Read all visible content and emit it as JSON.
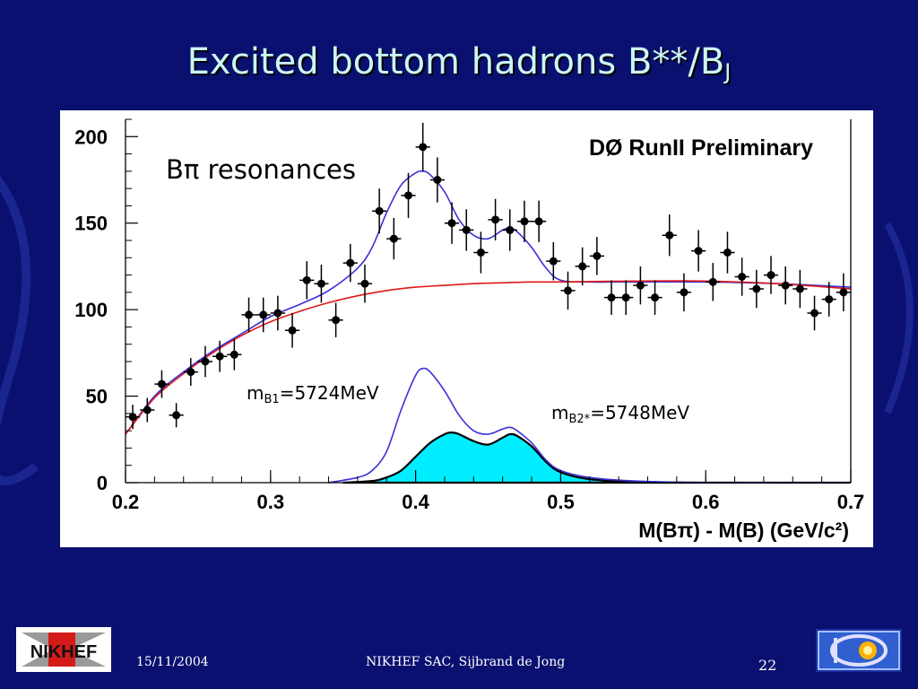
{
  "slide": {
    "title": "Excited bottom hadrons B**/B",
    "title_sub": "J",
    "footer_date": "15/11/2004",
    "footer_center": "NIKHEF SAC, Sijbrand de Jong",
    "page_number": "22",
    "logo_left_text": "NIKHEF",
    "background_color": "#0a1070",
    "title_color": "#ccf5f5"
  },
  "chart_data": {
    "type": "scatter",
    "experiment_label": "DØ RunII  Preliminary",
    "annotation_main": "Bπ resonances",
    "annotation_b1": {
      "prefix": "m",
      "sub": "B1",
      "rest": "=5724MeV"
    },
    "annotation_b2": {
      "prefix": "m",
      "sub": "B2*",
      "rest": "=5748MeV"
    },
    "xlabel": "M(Bπ) - M(B) (GeV/c²)",
    "ylabel": "",
    "xlim": [
      0.2,
      0.7
    ],
    "ylim": [
      0,
      210
    ],
    "x_ticks": [
      "0.2",
      "0.3",
      "0.4",
      "0.5",
      "0.6",
      "0.7"
    ],
    "y_ticks": [
      "0",
      "50",
      "100",
      "150",
      "200"
    ],
    "grid": false,
    "bin_width": 0.01,
    "series": [
      {
        "kind": "points",
        "color": "#000000",
        "x": [
          0.205,
          0.215,
          0.225,
          0.235,
          0.245,
          0.255,
          0.265,
          0.275,
          0.285,
          0.295,
          0.305,
          0.315,
          0.325,
          0.335,
          0.345,
          0.355,
          0.365,
          0.375,
          0.385,
          0.395,
          0.405,
          0.415,
          0.425,
          0.435,
          0.445,
          0.455,
          0.465,
          0.475,
          0.485,
          0.495,
          0.505,
          0.515,
          0.525,
          0.535,
          0.545,
          0.555,
          0.565,
          0.575,
          0.585,
          0.595,
          0.605,
          0.615,
          0.625,
          0.635,
          0.645,
          0.655,
          0.665,
          0.675,
          0.685,
          0.695
        ],
        "y": [
          38,
          42,
          57,
          39,
          64,
          70,
          73,
          74,
          97,
          97,
          98,
          88,
          117,
          115,
          94,
          127,
          115,
          157,
          141,
          166,
          194,
          175,
          150,
          146,
          133,
          152,
          146,
          151,
          151,
          128,
          111,
          125,
          131,
          107,
          107,
          114,
          107,
          143,
          110,
          134,
          116,
          133,
          119,
          112,
          120,
          114,
          112,
          98,
          106,
          110
        ],
        "yerr": [
          7,
          7,
          8,
          7,
          8,
          9,
          9,
          9,
          10,
          10,
          10,
          10,
          11,
          11,
          10,
          11,
          11,
          13,
          12,
          13,
          14,
          13,
          12,
          12,
          12,
          12,
          12,
          12,
          12,
          11,
          11,
          11,
          11,
          10,
          10,
          11,
          10,
          12,
          11,
          12,
          11,
          12,
          11,
          11,
          11,
          11,
          11,
          10,
          10,
          11
        ]
      },
      {
        "kind": "fit-total",
        "color": "#3a30d8",
        "x": [
          0.2,
          0.22,
          0.24,
          0.26,
          0.28,
          0.3,
          0.32,
          0.34,
          0.36,
          0.37,
          0.38,
          0.39,
          0.4,
          0.405,
          0.41,
          0.42,
          0.43,
          0.44,
          0.45,
          0.46,
          0.465,
          0.47,
          0.48,
          0.49,
          0.5,
          0.52,
          0.55,
          0.6,
          0.65,
          0.7
        ],
        "y": [
          28,
          50,
          64,
          76,
          86,
          96,
          103,
          111,
          124,
          136,
          156,
          172,
          179,
          180,
          178,
          168,
          152,
          143,
          141,
          146,
          147,
          145,
          136,
          124,
          117,
          116,
          116,
          116,
          115,
          113
        ]
      },
      {
        "kind": "background-fit",
        "color": "#e01818",
        "x": [
          0.2,
          0.22,
          0.24,
          0.26,
          0.28,
          0.3,
          0.32,
          0.34,
          0.36,
          0.38,
          0.4,
          0.42,
          0.44,
          0.46,
          0.48,
          0.5,
          0.55,
          0.6,
          0.65,
          0.7
        ],
        "y": [
          28,
          49,
          63,
          75,
          85,
          93,
          99,
          104,
          108,
          111,
          113,
          114,
          115,
          115.5,
          116,
          116,
          116.5,
          116.5,
          115,
          112
        ]
      },
      {
        "kind": "signal-total",
        "color": "#3a30d8",
        "x": [
          0.34,
          0.36,
          0.37,
          0.38,
          0.39,
          0.4,
          0.405,
          0.41,
          0.42,
          0.43,
          0.44,
          0.45,
          0.46,
          0.465,
          0.47,
          0.48,
          0.49,
          0.5,
          0.52,
          0.55,
          0.6,
          0.65,
          0.7
        ],
        "y": [
          0,
          3,
          7,
          18,
          42,
          62,
          66,
          64,
          53,
          39,
          30,
          28,
          31,
          32,
          30,
          23,
          13,
          7,
          3,
          1,
          0,
          0,
          0
        ]
      },
      {
        "kind": "signal-filled",
        "color": "#00eeff",
        "x": [
          0.35,
          0.37,
          0.38,
          0.39,
          0.4,
          0.41,
          0.42,
          0.425,
          0.43,
          0.44,
          0.45,
          0.46,
          0.465,
          0.47,
          0.48,
          0.49,
          0.5,
          0.52,
          0.55,
          0.6,
          0.65,
          0.7
        ],
        "y": [
          0,
          1,
          3,
          7,
          15,
          23,
          28,
          29,
          28,
          24,
          22,
          26,
          28,
          27,
          21,
          12,
          6,
          2,
          0.5,
          0,
          0,
          0
        ]
      }
    ]
  }
}
